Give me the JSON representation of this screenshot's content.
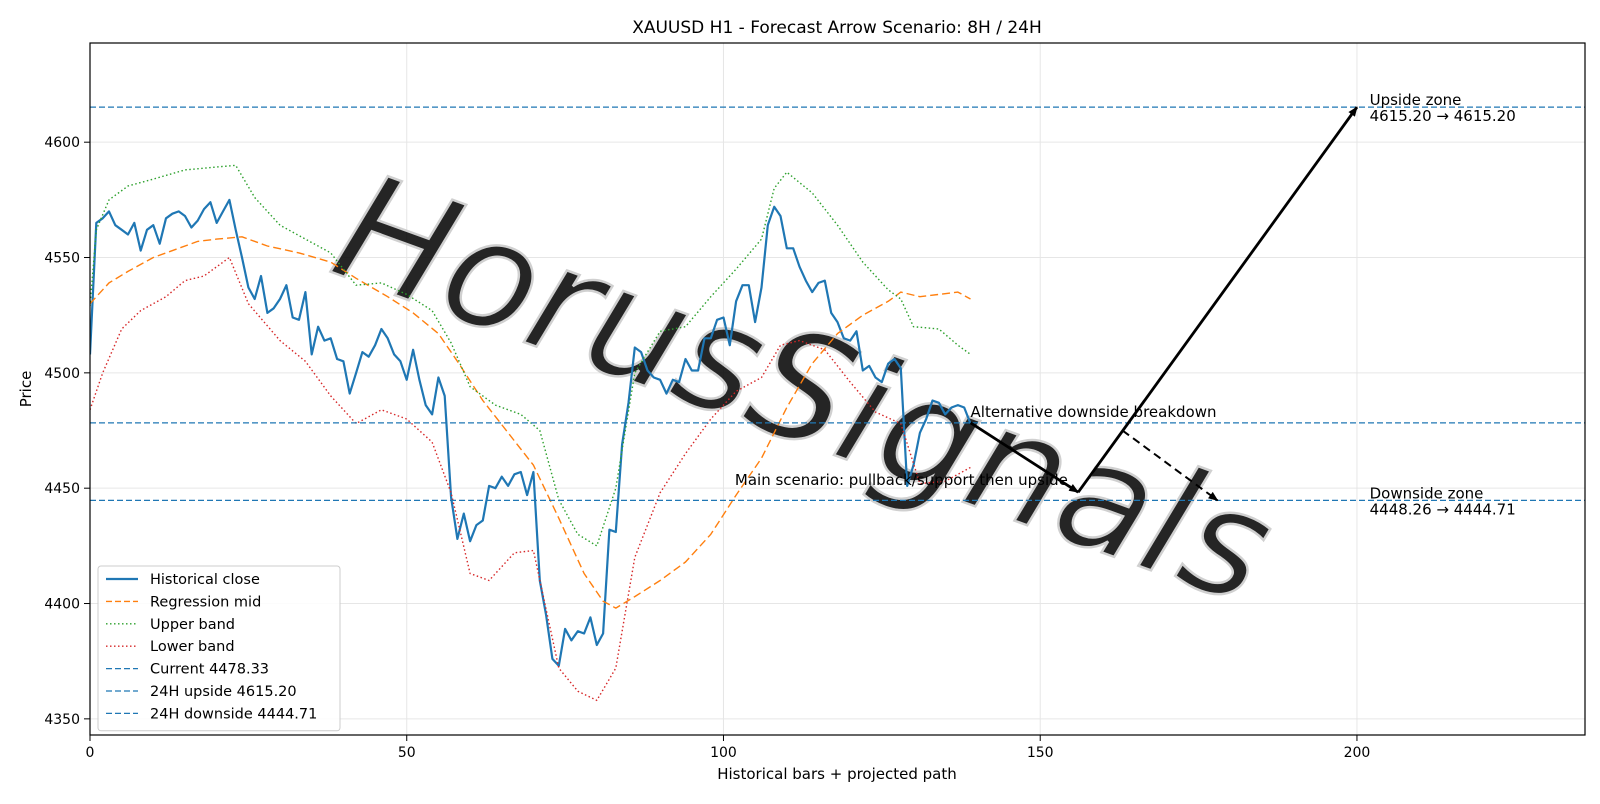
{
  "chart_data": {
    "type": "line",
    "title": "XAUUSD H1 - Forecast Arrow Scenario: 8H / 24H",
    "xlabel": "Historical bars + projected path",
    "ylabel": "Price",
    "xlim": [
      0,
      236
    ],
    "ylim": [
      4343,
      4643
    ],
    "xticks": [
      0,
      50,
      100,
      150,
      200
    ],
    "yticks": [
      4350,
      4400,
      4450,
      4500,
      4550,
      4600
    ],
    "grid": true,
    "legend_position": "lower-left",
    "watermark": "HorusSignals",
    "colors": {
      "close": "#1f77b4",
      "mid": "#ff7f0e",
      "upper": "#2ca02c",
      "lower": "#d62728",
      "hline": "#1f77b4",
      "arrow": "#000000",
      "watermark": "#c8c8c8"
    },
    "series": [
      {
        "name": "Historical close",
        "style": "solid",
        "points": [
          [
            0,
            4508
          ],
          [
            1,
            4565
          ],
          [
            2,
            4567
          ],
          [
            3,
            4570
          ],
          [
            4,
            4564
          ],
          [
            5,
            4562
          ],
          [
            6,
            4560
          ],
          [
            7,
            4565
          ],
          [
            8,
            4553
          ],
          [
            9,
            4562
          ],
          [
            10,
            4564
          ],
          [
            11,
            4556
          ],
          [
            12,
            4567
          ],
          [
            13,
            4569
          ],
          [
            14,
            4570
          ],
          [
            15,
            4568
          ],
          [
            16,
            4563
          ],
          [
            17,
            4566
          ],
          [
            18,
            4571
          ],
          [
            19,
            4574
          ],
          [
            20,
            4565
          ],
          [
            21,
            4570
          ],
          [
            22,
            4575
          ],
          [
            23,
            4562
          ],
          [
            24,
            4550
          ],
          [
            25,
            4537
          ],
          [
            26,
            4532
          ],
          [
            27,
            4542
          ],
          [
            28,
            4526
          ],
          [
            29,
            4528
          ],
          [
            30,
            4532
          ],
          [
            31,
            4538
          ],
          [
            32,
            4524
          ],
          [
            33,
            4523
          ],
          [
            34,
            4535
          ],
          [
            35,
            4508
          ],
          [
            36,
            4520
          ],
          [
            37,
            4514
          ],
          [
            38,
            4515
          ],
          [
            39,
            4506
          ],
          [
            40,
            4505
          ],
          [
            41,
            4491
          ],
          [
            42,
            4500
          ],
          [
            43,
            4509
          ],
          [
            44,
            4507
          ],
          [
            45,
            4512
          ],
          [
            46,
            4519
          ],
          [
            47,
            4515
          ],
          [
            48,
            4508
          ],
          [
            49,
            4505
          ],
          [
            50,
            4497
          ],
          [
            51,
            4510
          ],
          [
            52,
            4497
          ],
          [
            53,
            4486
          ],
          [
            54,
            4482
          ],
          [
            55,
            4498
          ],
          [
            56,
            4490
          ],
          [
            57,
            4446
          ],
          [
            58,
            4428
          ],
          [
            59,
            4439
          ],
          [
            60,
            4427
          ],
          [
            61,
            4434
          ],
          [
            62,
            4436
          ],
          [
            63,
            4451
          ],
          [
            64,
            4450
          ],
          [
            65,
            4455
          ],
          [
            66,
            4451
          ],
          [
            67,
            4456
          ],
          [
            68,
            4457
          ],
          [
            69,
            4447
          ],
          [
            70,
            4457
          ],
          [
            71,
            4410
          ],
          [
            72,
            4395
          ],
          [
            73,
            4376
          ],
          [
            74,
            4373
          ],
          [
            75,
            4389
          ],
          [
            76,
            4384
          ],
          [
            77,
            4388
          ],
          [
            78,
            4387
          ],
          [
            79,
            4394
          ],
          [
            80,
            4382
          ],
          [
            81,
            4387
          ],
          [
            82,
            4432
          ],
          [
            83,
            4431
          ],
          [
            84,
            4469
          ],
          [
            85,
            4487
          ],
          [
            86,
            4511
          ],
          [
            87,
            4509
          ],
          [
            88,
            4501
          ],
          [
            89,
            4498
          ],
          [
            90,
            4497
          ],
          [
            91,
            4491
          ],
          [
            92,
            4497
          ],
          [
            93,
            4496
          ],
          [
            94,
            4506
          ],
          [
            95,
            4501
          ],
          [
            96,
            4501
          ],
          [
            97,
            4515
          ],
          [
            98,
            4515
          ],
          [
            99,
            4523
          ],
          [
            100,
            4524
          ],
          [
            101,
            4512
          ],
          [
            102,
            4531
          ],
          [
            103,
            4538
          ],
          [
            104,
            4538
          ],
          [
            105,
            4522
          ],
          [
            106,
            4537
          ],
          [
            107,
            4564
          ],
          [
            108,
            4572
          ],
          [
            109,
            4568
          ],
          [
            110,
            4554
          ],
          [
            111,
            4554
          ],
          [
            112,
            4546
          ],
          [
            113,
            4540
          ],
          [
            114,
            4535
          ],
          [
            115,
            4539
          ],
          [
            116,
            4540
          ],
          [
            117,
            4526
          ],
          [
            118,
            4522
          ],
          [
            119,
            4515
          ],
          [
            120,
            4514
          ],
          [
            121,
            4518
          ],
          [
            122,
            4501
          ],
          [
            123,
            4503
          ],
          [
            124,
            4498
          ],
          [
            125,
            4496
          ],
          [
            126,
            4504
          ],
          [
            127,
            4506
          ],
          [
            128,
            4502
          ],
          [
            129,
            4451
          ],
          [
            130,
            4460
          ],
          [
            131,
            4474
          ],
          [
            132,
            4480
          ],
          [
            133,
            4488
          ],
          [
            134,
            4487
          ],
          [
            135,
            4482
          ],
          [
            136,
            4485
          ],
          [
            137,
            4486
          ],
          [
            138,
            4485
          ],
          [
            139,
            4478
          ]
        ]
      },
      {
        "name": "Regression mid",
        "style": "dashed",
        "points": [
          [
            0,
            4530
          ],
          [
            3,
            4539
          ],
          [
            6,
            4544
          ],
          [
            10,
            4550
          ],
          [
            14,
            4554
          ],
          [
            17,
            4557
          ],
          [
            20,
            4558
          ],
          [
            24,
            4559
          ],
          [
            28,
            4555
          ],
          [
            33,
            4552
          ],
          [
            38,
            4548
          ],
          [
            42,
            4541
          ],
          [
            47,
            4533
          ],
          [
            51,
            4526
          ],
          [
            55,
            4517
          ],
          [
            58,
            4505
          ],
          [
            62,
            4488
          ],
          [
            66,
            4474
          ],
          [
            70,
            4460
          ],
          [
            74,
            4437
          ],
          [
            78,
            4413
          ],
          [
            81,
            4401
          ],
          [
            83,
            4398
          ],
          [
            86,
            4403
          ],
          [
            90,
            4410
          ],
          [
            94,
            4418
          ],
          [
            98,
            4430
          ],
          [
            102,
            4447
          ],
          [
            106,
            4463
          ],
          [
            110,
            4485
          ],
          [
            114,
            4504
          ],
          [
            118,
            4517
          ],
          [
            122,
            4525
          ],
          [
            126,
            4531
          ],
          [
            128,
            4535
          ],
          [
            131,
            4533
          ],
          [
            134,
            4534
          ],
          [
            137,
            4535
          ],
          [
            139,
            4532
          ]
        ]
      },
      {
        "name": "Upper band",
        "style": "dotted",
        "points": [
          [
            0,
            4529
          ],
          [
            1,
            4562
          ],
          [
            3,
            4575
          ],
          [
            6,
            4581
          ],
          [
            10,
            4584
          ],
          [
            15,
            4588
          ],
          [
            19,
            4589
          ],
          [
            23,
            4590
          ],
          [
            26,
            4576
          ],
          [
            30,
            4564
          ],
          [
            34,
            4558
          ],
          [
            38,
            4552
          ],
          [
            42,
            4538
          ],
          [
            46,
            4539
          ],
          [
            50,
            4534
          ],
          [
            54,
            4527
          ],
          [
            57,
            4513
          ],
          [
            60,
            4494
          ],
          [
            64,
            4486
          ],
          [
            68,
            4482
          ],
          [
            71,
            4475
          ],
          [
            74,
            4445
          ],
          [
            77,
            4430
          ],
          [
            80,
            4425
          ],
          [
            83,
            4450
          ],
          [
            86,
            4500
          ],
          [
            90,
            4518
          ],
          [
            94,
            4520
          ],
          [
            98,
            4533
          ],
          [
            102,
            4545
          ],
          [
            106,
            4558
          ],
          [
            108,
            4580
          ],
          [
            110,
            4587
          ],
          [
            114,
            4578
          ],
          [
            118,
            4564
          ],
          [
            122,
            4548
          ],
          [
            126,
            4536
          ],
          [
            128,
            4532
          ],
          [
            130,
            4520
          ],
          [
            134,
            4519
          ],
          [
            137,
            4512
          ],
          [
            139,
            4508
          ]
        ]
      },
      {
        "name": "Lower band",
        "style": "dotted",
        "points": [
          [
            0,
            4484
          ],
          [
            2,
            4500
          ],
          [
            5,
            4519
          ],
          [
            8,
            4527
          ],
          [
            12,
            4533
          ],
          [
            15,
            4540
          ],
          [
            18,
            4542
          ],
          [
            22,
            4550
          ],
          [
            25,
            4530
          ],
          [
            30,
            4514
          ],
          [
            34,
            4505
          ],
          [
            38,
            4490
          ],
          [
            42,
            4478
          ],
          [
            46,
            4484
          ],
          [
            50,
            4480
          ],
          [
            54,
            4470
          ],
          [
            57,
            4448
          ],
          [
            60,
            4413
          ],
          [
            63,
            4410
          ],
          [
            67,
            4422
          ],
          [
            70,
            4423
          ],
          [
            74,
            4372
          ],
          [
            77,
            4362
          ],
          [
            80,
            4358
          ],
          [
            83,
            4372
          ],
          [
            86,
            4420
          ],
          [
            90,
            4448
          ],
          [
            94,
            4465
          ],
          [
            98,
            4480
          ],
          [
            102,
            4492
          ],
          [
            106,
            4498
          ],
          [
            109,
            4512
          ],
          [
            112,
            4514
          ],
          [
            116,
            4510
          ],
          [
            120,
            4496
          ],
          [
            124,
            4483
          ],
          [
            128,
            4478
          ],
          [
            131,
            4452
          ],
          [
            135,
            4453
          ],
          [
            139,
            4459
          ]
        ]
      }
    ],
    "hlines": [
      {
        "name": "Current 4478.33",
        "y": 4478.33
      },
      {
        "name": "24H upside 4615.20",
        "y": 4615.2
      },
      {
        "name": "24H downside 4444.71",
        "y": 4444.71
      }
    ],
    "arrows": [
      {
        "name": "pullback",
        "from": [
          139,
          4478.33
        ],
        "to": [
          156,
          4448.26
        ],
        "style": "solid"
      },
      {
        "name": "upside",
        "from": [
          156,
          4448.26
        ],
        "to": [
          200,
          4615.2
        ],
        "style": "solid"
      },
      {
        "name": "alternative",
        "from": [
          163,
          4475
        ],
        "to": [
          178,
          4444.71
        ],
        "style": "dashed"
      }
    ],
    "annotations": [
      {
        "name": "upside-zone-label",
        "text": "Upside zone\n4615.20 → 4615.20",
        "x": 202,
        "y": 4615.2
      },
      {
        "name": "downside-zone-label",
        "text": "Downside zone\n4448.26 → 4444.71",
        "x": 202,
        "y": 4444.71
      },
      {
        "name": "alternative-label",
        "text": "Alternative downside breakdown",
        "x": 139,
        "y": 4478.33
      },
      {
        "name": "main-scenario-label",
        "text": "Main scenario: pullback/support then upside",
        "x": 155,
        "y": 4448.26
      }
    ]
  }
}
